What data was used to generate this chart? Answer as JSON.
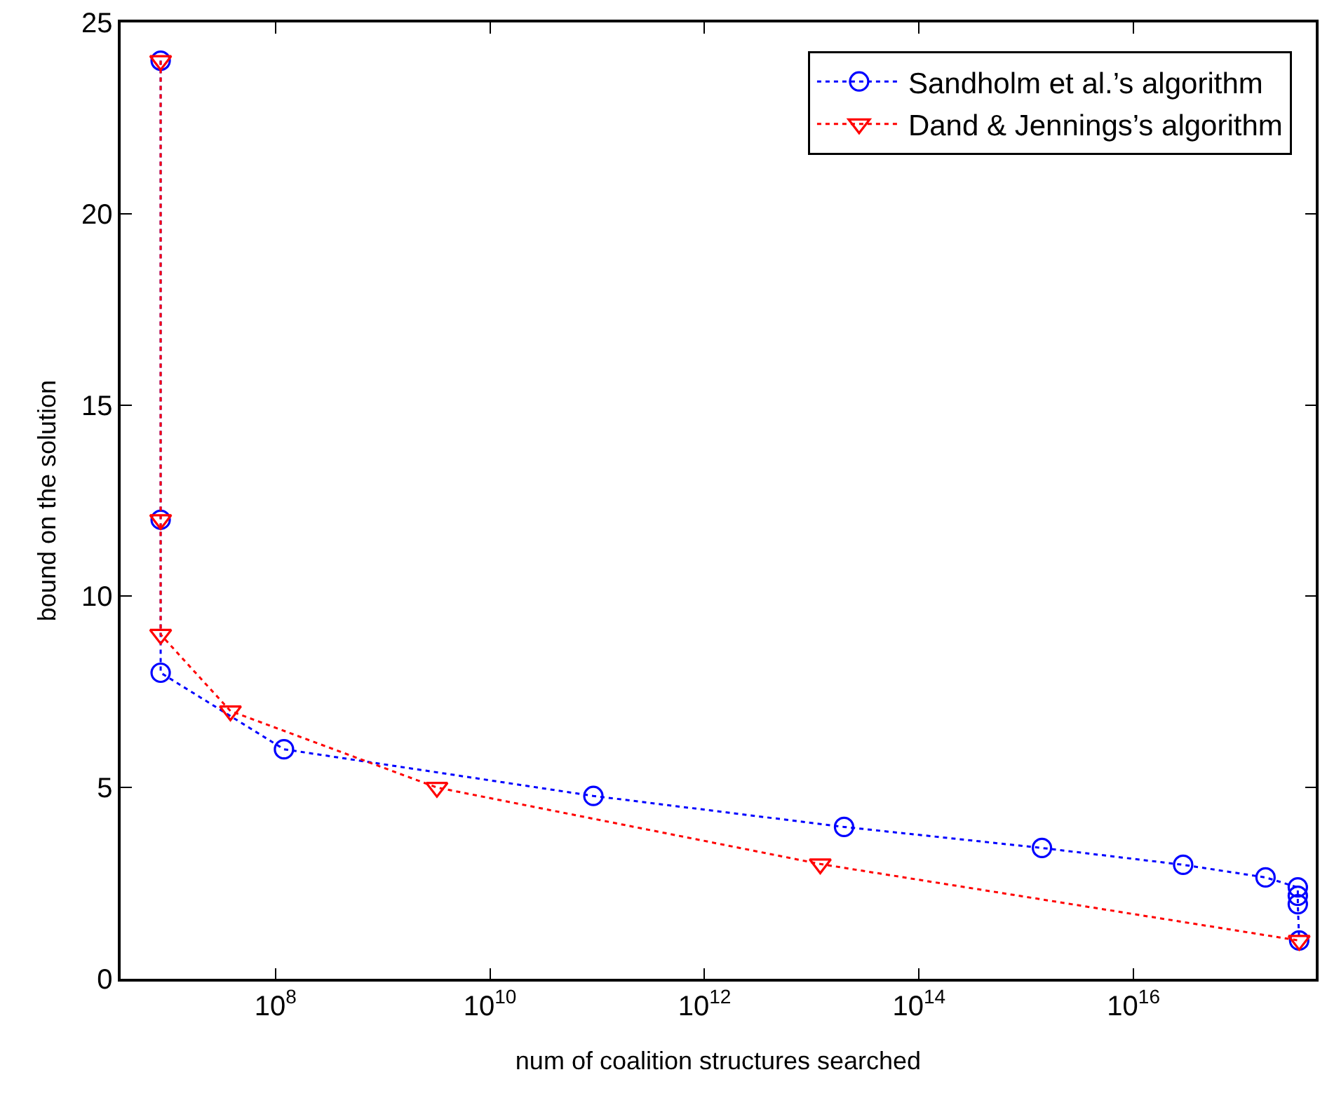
{
  "chart_data": {
    "type": "line",
    "xlabel": "num of coalition structures searched",
    "ylabel": "bound on the solution",
    "log": "x",
    "xlim": [
      3600000.0,
      5e+17
    ],
    "ylim": [
      0,
      25
    ],
    "xticks": [
      {
        "value": 100000000.0,
        "label": "10$^{8}$"
      },
      {
        "value": 10000000000.0,
        "label": "10$^{10}$"
      },
      {
        "value": 1000000000000.0,
        "label": "10$^{12}$"
      },
      {
        "value": 100000000000000.0,
        "label": "10$^{14}$"
      },
      {
        "value": 1e+16,
        "label": "10$^{16}$"
      }
    ],
    "yticks": [
      0,
      5,
      10,
      15,
      20,
      25
    ],
    "grid": false,
    "legend": "top right",
    "line_style": "dotted",
    "series": [
      {
        "name": "Sandholm et al.’s algorithm",
        "color": "#0000ff",
        "marker": "circle",
        "x": [
          8500000.0,
          8500000.0,
          8500000.0,
          120000000.0,
          92000000000.0,
          20000000000000.0,
          1400000000000000.0,
          2.9e+16,
          1.7e+17,
          3.4e+17,
          3.4e+17,
          3.4e+17,
          3.5e+17
        ],
        "values": [
          24,
          12,
          8,
          6,
          4.78,
          3.97,
          3.42,
          2.98,
          2.65,
          2.39,
          2.17,
          1.95,
          1
        ]
      },
      {
        "name": "Dand & Jennings’s algorithm",
        "color": "#ff0000",
        "marker": "triangle",
        "x": [
          8500000.0,
          8500000.0,
          8500000.0,
          38000000.0,
          3200000000.0,
          12000000000000.0,
          3.5e+17
        ],
        "values": [
          24,
          12,
          9,
          7,
          5,
          3,
          1
        ]
      }
    ]
  }
}
